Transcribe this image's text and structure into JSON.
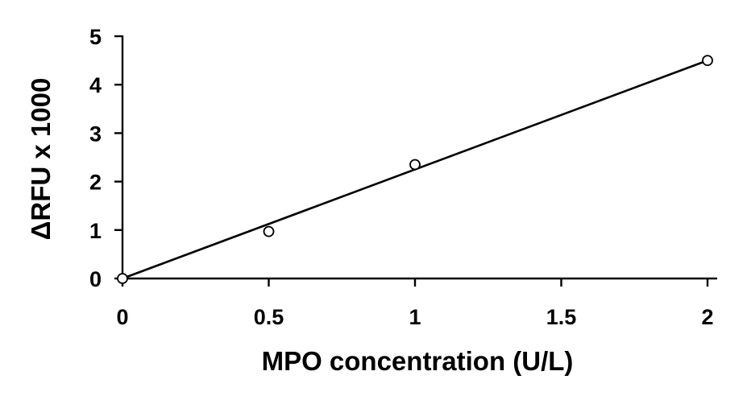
{
  "chart_data": {
    "type": "scatter",
    "title": "",
    "xlabel": "MPO concentration (U/L)",
    "ylabel": "ΔRFU x 1000",
    "xlim": [
      0,
      2
    ],
    "ylim": [
      0,
      5
    ],
    "x_ticks": [
      "0",
      "0.5",
      "1",
      "1.5",
      "2"
    ],
    "y_ticks": [
      "0",
      "1",
      "2",
      "3",
      "4",
      "5"
    ],
    "x_tick_values": [
      0,
      0.5,
      1,
      1.5,
      2
    ],
    "y_tick_values": [
      0,
      1,
      2,
      3,
      4,
      5
    ],
    "series": [
      {
        "marker": "open-circle",
        "x": [
          0,
          0.5,
          1,
          2
        ],
        "y": [
          0,
          0.97,
          2.35,
          4.5
        ]
      }
    ],
    "trendline": {
      "type": "linear",
      "x": [
        0,
        2
      ],
      "y": [
        0,
        4.5
      ]
    },
    "grid": false,
    "legend": "none",
    "colors": {
      "line": "#000000",
      "marker_fill": "#ffffff",
      "marker_stroke": "#000000"
    }
  }
}
